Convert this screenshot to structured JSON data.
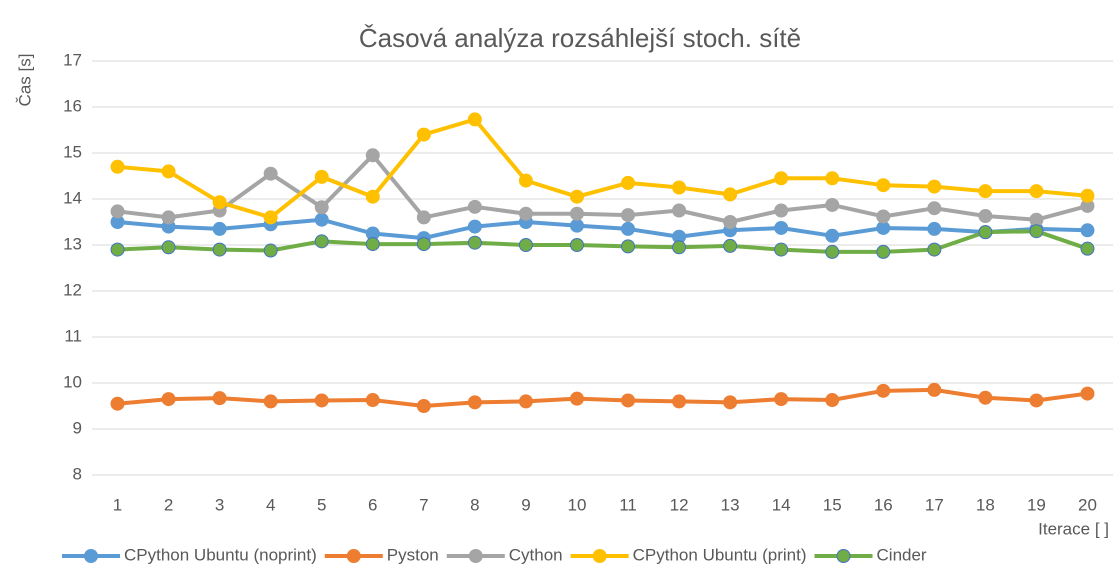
{
  "chart_data": {
    "type": "line",
    "title": "Časová analýza rozsáhlejší stoch. sítě",
    "y_label": "Čas [s]",
    "x_label": "Iterace [ ]",
    "categories": [
      "1",
      "2",
      "3",
      "4",
      "5",
      "6",
      "7",
      "8",
      "9",
      "10",
      "11",
      "12",
      "13",
      "14",
      "15",
      "16",
      "17",
      "18",
      "19",
      "20"
    ],
    "ylim": [
      8,
      17
    ],
    "yticks": [
      8,
      9,
      10,
      11,
      12,
      13,
      14,
      15,
      16,
      17
    ],
    "grid": true,
    "legend": "bottom",
    "series": [
      {
        "name": "CPython Ubuntu (noprint)",
        "color": "#5b9bd5",
        "values": [
          13.5,
          13.4,
          13.35,
          13.45,
          13.55,
          13.25,
          13.15,
          13.4,
          13.5,
          13.42,
          13.35,
          13.18,
          13.32,
          13.37,
          13.2,
          13.37,
          13.35,
          13.28,
          13.35,
          13.32
        ]
      },
      {
        "name": "Pyston",
        "color": "#ed7d31",
        "values": [
          9.55,
          9.65,
          9.67,
          9.6,
          9.62,
          9.63,
          9.5,
          9.58,
          9.6,
          9.66,
          9.62,
          9.6,
          9.58,
          9.65,
          9.63,
          9.83,
          9.85,
          9.68,
          9.62,
          9.77
        ]
      },
      {
        "name": "Cython",
        "color": "#a5a5a5",
        "values": [
          13.73,
          13.6,
          13.75,
          14.55,
          13.82,
          14.95,
          13.6,
          13.83,
          13.68,
          13.68,
          13.65,
          13.75,
          13.5,
          13.75,
          13.87,
          13.62,
          13.8,
          13.63,
          13.55,
          13.85
        ]
      },
      {
        "name": "CPython Ubuntu (print)",
        "color": "#ffc000",
        "values": [
          14.7,
          14.6,
          13.93,
          13.6,
          14.48,
          14.05,
          15.4,
          15.73,
          14.4,
          14.05,
          14.35,
          14.25,
          14.1,
          14.45,
          14.45,
          14.3,
          14.27,
          14.17,
          14.17,
          14.07
        ]
      },
      {
        "name": "Cinder",
        "color": "#70ad47",
        "marker_edge": "#4472c4",
        "values": [
          12.9,
          12.95,
          12.9,
          12.88,
          13.08,
          13.02,
          13.02,
          13.05,
          13.0,
          13.0,
          12.97,
          12.95,
          12.98,
          12.9,
          12.85,
          12.85,
          12.9,
          13.28,
          13.3,
          12.92
        ]
      }
    ]
  }
}
